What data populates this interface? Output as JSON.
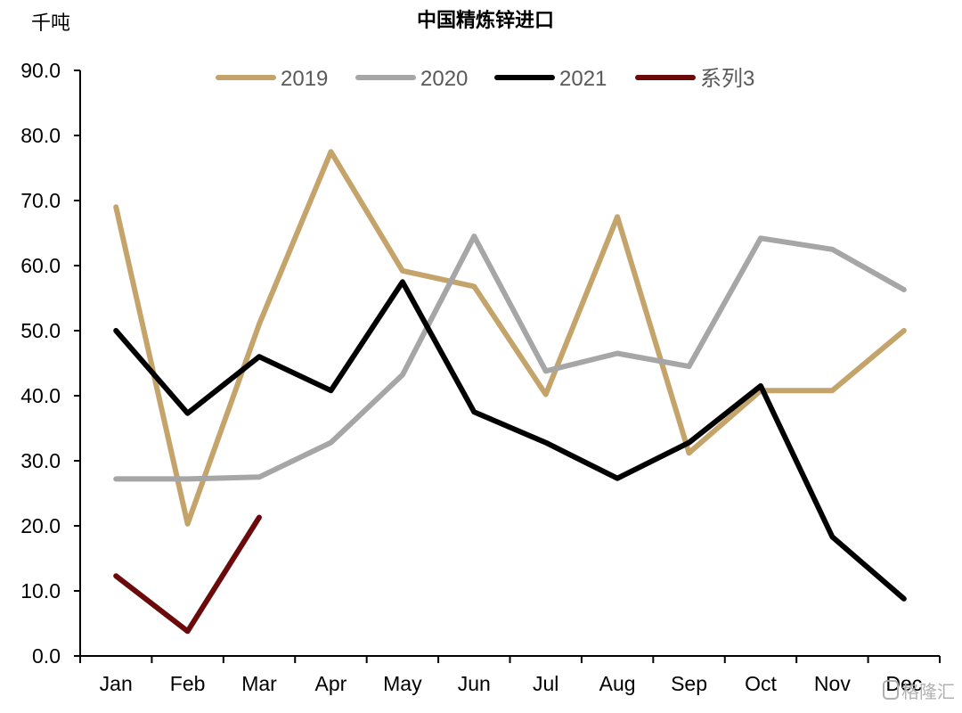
{
  "chart_data": {
    "type": "line",
    "title": "中国精炼锌进口",
    "ylabel": "千吨",
    "xlabel": "",
    "ylim": [
      0,
      90
    ],
    "yticks": [
      "0.0",
      "10.0",
      "20.0",
      "30.0",
      "40.0",
      "50.0",
      "60.0",
      "70.0",
      "80.0",
      "90.0"
    ],
    "categories": [
      "Jan",
      "Feb",
      "Mar",
      "Apr",
      "May",
      "Jun",
      "Jul",
      "Aug",
      "Sep",
      "Oct",
      "Nov",
      "Dec"
    ],
    "legend_position": "top",
    "grid": false,
    "series": [
      {
        "name": "2019",
        "color": "#c4a46b",
        "values": [
          69.0,
          20.3,
          51.0,
          77.5,
          59.2,
          56.8,
          40.2,
          67.5,
          31.2,
          40.8,
          40.8,
          50.0
        ]
      },
      {
        "name": "2020",
        "color": "#a6a6a6",
        "values": [
          27.2,
          27.2,
          27.5,
          32.8,
          43.2,
          64.5,
          43.8,
          46.5,
          44.5,
          64.2,
          62.5,
          56.3
        ]
      },
      {
        "name": "2021",
        "color": "#000000",
        "values": [
          50.0,
          37.3,
          46.0,
          40.8,
          57.5,
          37.5,
          32.8,
          27.3,
          32.8,
          41.5,
          18.3,
          8.8
        ]
      },
      {
        "name": "系列3",
        "color": "#6b0a0a",
        "values": [
          12.3,
          3.8,
          21.3,
          null,
          null,
          null,
          null,
          null,
          null,
          null,
          null,
          null
        ]
      }
    ]
  },
  "watermark": "格隆汇"
}
